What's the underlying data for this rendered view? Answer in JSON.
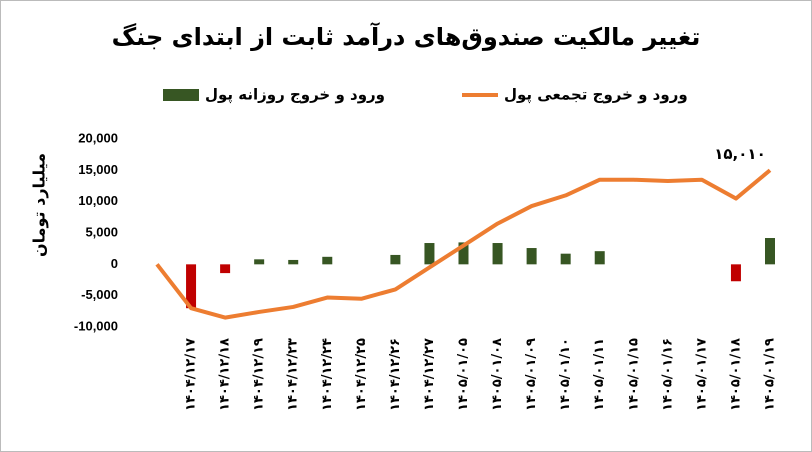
{
  "chart_data": {
    "type": "bar-line",
    "title": "تغییر مالکیت صندوق‌های درآمد ثابت از ابتدای جنگ",
    "y_label": "میلیارد تومان",
    "categories": [
      null,
      "۱۴۰۴/۱۲/۱۷",
      "۱۴۰۴/۱۲/۱۸",
      "۱۴۰۴/۱۲/۱۹",
      "۱۴۰۴/۱۲/۲۳",
      "۱۴۰۴/۱۲/۲۴",
      "۱۴۰۴/۱۲/۲۵",
      "۱۴۰۴/۱۲/۲۶",
      "۱۴۰۴/۱۲/۲۷",
      "۱۴۰۵/۰۱/۰۵",
      "۱۴۰۵/۰۱/۰۸",
      "۱۴۰۵/۰۱/۰۹",
      "۱۴۰۵/۰۱/۱۰",
      "۱۴۰۵/۰۱/۱۱",
      "۱۴۰۵/۰۱/۱۵",
      "۱۴۰۵/۰۱/۱۶",
      "۱۴۰۵/۰۱/۱۷",
      "۱۴۰۵/۰۱/۱۸",
      "۱۴۰۵/۰۱/۱۹"
    ],
    "series": [
      {
        "name": "ورود و خروج روزانه پول",
        "kind": "bar",
        "color": "#375623",
        "negative_color": "#c00000",
        "values": [
          null,
          -7000,
          -1400,
          800,
          700,
          1200,
          0,
          1500,
          3400,
          3500,
          3400,
          2600,
          1700,
          2100,
          0,
          0,
          0,
          -2700,
          4200
        ]
      },
      {
        "name": "ورود و خروج تجمعی پول",
        "kind": "line",
        "color": "#ed7d31",
        "values": [
          0,
          -7000,
          -8500,
          -7600,
          -6800,
          -5300,
          -5500,
          -4000,
          -500,
          3000,
          6500,
          9300,
          11000,
          13500,
          13500,
          13300,
          13500,
          10500,
          15010
        ],
        "value_labels": [
          null,
          null,
          null,
          null,
          null,
          null,
          null,
          null,
          null,
          null,
          null,
          null,
          null,
          null,
          null,
          null,
          null,
          null,
          "۱۵,۰۱۰"
        ]
      }
    ],
    "ylim": [
      -10000,
      20000
    ],
    "yticks": [
      {
        "value": -10000,
        "label": "-10,000"
      },
      {
        "value": -5000,
        "label": "-5,000"
      },
      0,
      {
        "value": 5000,
        "label": "5,000"
      },
      {
        "value": 10000,
        "label": "10,000"
      },
      {
        "value": 15000,
        "label": "15,000"
      },
      {
        "value": 20000,
        "label": "20,000"
      }
    ],
    "grid": false
  }
}
